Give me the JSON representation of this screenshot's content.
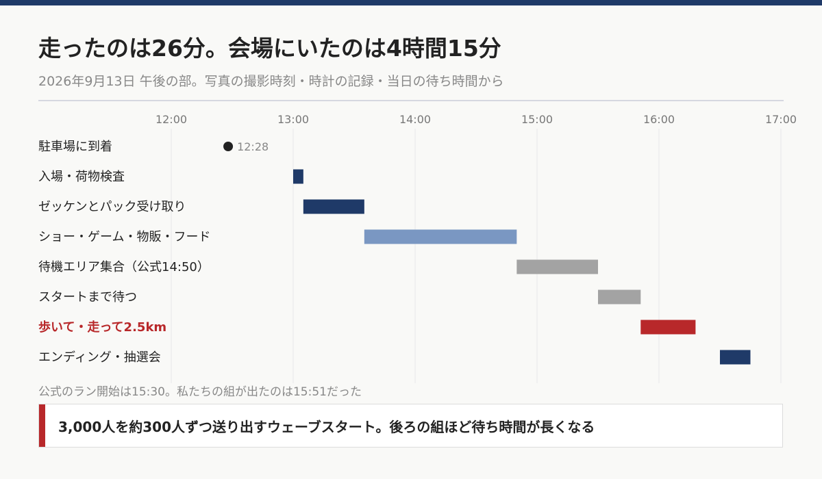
{
  "header": {
    "title": "走ったのは26分。会場にいたのは4時間15分",
    "subtitle": "2026年9月13日 午後の部。写真の撮影時刻・時計の記録・当日の待ち時間から"
  },
  "footnote": "公式のラン開始は15:30。私たちの組が出たのは15:51だった",
  "callout": "3,000人を約300人ずつ送り出すウェーブスタート。後ろの組ほど待ち時間が長くなる",
  "colors": {
    "navy": "#1f3a68",
    "light_blue": "#7a97c2",
    "gray": "#a3a3a3",
    "red": "#b8282a",
    "marker": "#222222"
  },
  "chart_data": {
    "type": "gantt",
    "x_ticks": [
      "12:00",
      "13:00",
      "14:00",
      "15:00",
      "16:00",
      "17:00"
    ],
    "xlim": [
      "12:00",
      "17:00"
    ],
    "grid": "vertical",
    "rows": [
      {
        "label": "駐車場に到着",
        "kind": "point",
        "time": "12:28",
        "point_label": "12:28",
        "color": "#222222"
      },
      {
        "label": "入場・荷物検査",
        "kind": "bar",
        "start": "13:00",
        "end": "13:05",
        "color": "#1f3a68"
      },
      {
        "label": "ゼッケンとパック受け取り",
        "kind": "bar",
        "start": "13:05",
        "end": "13:35",
        "color": "#1f3a68"
      },
      {
        "label": "ショー・ゲーム・物販・フード",
        "kind": "bar",
        "start": "13:35",
        "end": "14:50",
        "color": "#7a97c2"
      },
      {
        "label": "待機エリア集合（公式14:50）",
        "kind": "bar",
        "start": "14:50",
        "end": "15:30",
        "color": "#a3a3a3"
      },
      {
        "label": "スタートまで待つ",
        "kind": "bar",
        "start": "15:30",
        "end": "15:51",
        "color": "#a3a3a3"
      },
      {
        "label": "歩いて・走って2.5km",
        "kind": "bar",
        "start": "15:51",
        "end": "16:18",
        "color": "#b8282a",
        "highlight": true
      },
      {
        "label": "エンディング・抽選会",
        "kind": "bar",
        "start": "16:30",
        "end": "16:45",
        "color": "#1f3a68"
      }
    ]
  }
}
